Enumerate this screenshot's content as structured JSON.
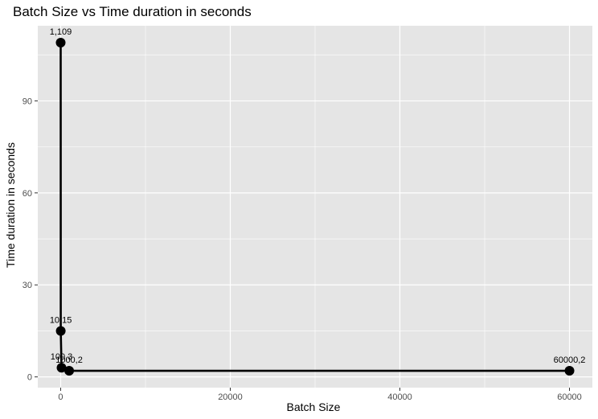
{
  "chart_data": {
    "type": "line",
    "title": "Batch Size vs Time duration in seconds",
    "xlabel": "Batch Size",
    "ylabel": "Time duration in seconds",
    "xlim": [
      -2700,
      62700
    ],
    "ylim": [
      -3.5,
      114.5
    ],
    "xticks": [
      0,
      20000,
      40000,
      60000
    ],
    "xtick_labels": [
      "0",
      "20000",
      "40000",
      "60000"
    ],
    "yticks": [
      0,
      30,
      60,
      90
    ],
    "ytick_labels": [
      "0",
      "30",
      "60",
      "90"
    ],
    "grid": true,
    "legend": "none",
    "series": [
      {
        "points": [
          {
            "x": 1,
            "y": 109,
            "label": "1,109"
          },
          {
            "x": 10,
            "y": 15,
            "label": "10,15"
          },
          {
            "x": 100,
            "y": 3,
            "label": "100,3"
          },
          {
            "x": 1000,
            "y": 2,
            "label": "1000,2"
          },
          {
            "x": 60000,
            "y": 2,
            "label": "60000,2"
          }
        ]
      }
    ],
    "colors": {
      "panel_background": "#e5e5e5",
      "grid_major": "#ffffff",
      "line": "#000000",
      "point": "#000000",
      "tick_text": "#4d4d4d"
    }
  }
}
